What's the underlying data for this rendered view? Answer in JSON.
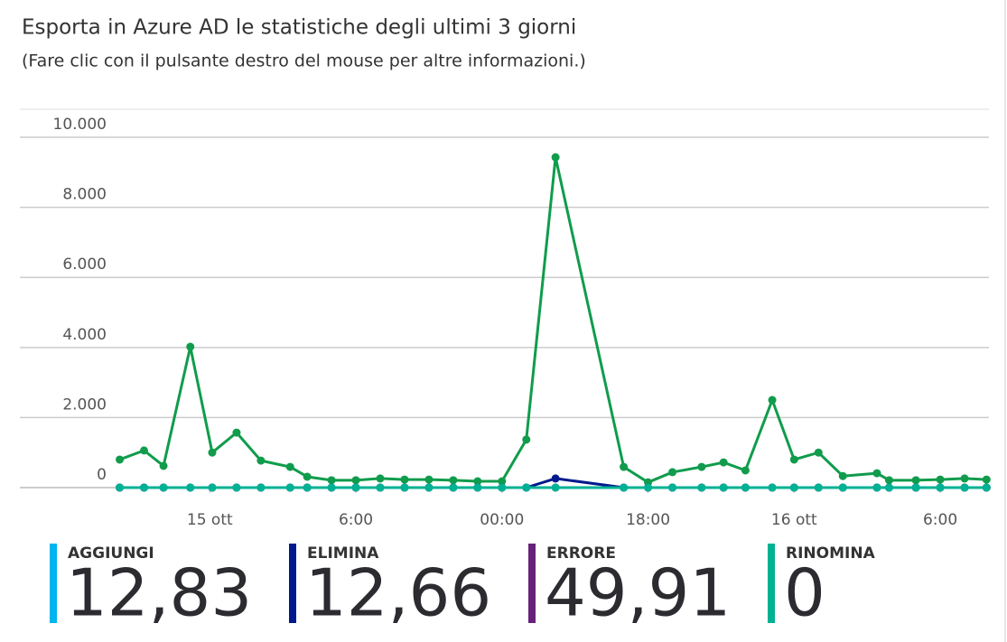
{
  "chart_data": {
    "type": "line",
    "title": "Esporta in Azure AD le statistiche degli ultimi 3 giorni",
    "subtitle": "(Fare clic con il pulsante destro del mouse per altre informazioni.)",
    "x": [
      -3.7,
      -2.7,
      -1.9,
      -0.8,
      0.1,
      1.1,
      2.1,
      3.3,
      4.0,
      5.0,
      6.0,
      7.0,
      8.0,
      9.0,
      10.0,
      11.0,
      12.0,
      13.0,
      14.2,
      17.0,
      18.0,
      19.0,
      20.2,
      21.1,
      22.0,
      23.1,
      24.0,
      25.0,
      26.0,
      27.4,
      27.9,
      29.0,
      30.0,
      31.0,
      31.9
    ],
    "series": [
      {
        "color": "#109c4c",
        "values": [
          800,
          1060,
          620,
          4020,
          1000,
          1570,
          770,
          590,
          310,
          210,
          210,
          260,
          230,
          230,
          210,
          180,
          180,
          1370,
          9430,
          590,
          150,
          440,
          590,
          720,
          490,
          2500,
          800,
          1000,
          330,
          410,
          210,
          210,
          230,
          260,
          230
        ]
      },
      {
        "color": "#68217a",
        "values": [
          0,
          0,
          0,
          0,
          0,
          0,
          0,
          0,
          0,
          0,
          0,
          0,
          0,
          0,
          0,
          0,
          0,
          0,
          0,
          0,
          0,
          0,
          0,
          0,
          0,
          0,
          0,
          0,
          0,
          0,
          0,
          0,
          0,
          0,
          0
        ]
      },
      {
        "color": "#001a8c",
        "values": [
          0,
          0,
          0,
          0,
          0,
          0,
          0,
          0,
          0,
          0,
          0,
          0,
          0,
          0,
          0,
          0,
          0,
          0,
          260,
          0,
          0,
          0,
          0,
          0,
          0,
          0,
          0,
          0,
          0,
          0,
          0,
          0,
          0,
          0,
          0
        ]
      },
      {
        "color": "#00b294",
        "values": [
          0,
          0,
          0,
          0,
          0,
          0,
          0,
          0,
          0,
          0,
          0,
          0,
          0,
          0,
          0,
          0,
          0,
          0,
          0,
          0,
          0,
          0,
          0,
          0,
          0,
          0,
          0,
          0,
          0,
          0,
          0,
          0,
          0,
          0,
          0
        ]
      }
    ],
    "xlim": [
      -7.8,
      32
    ],
    "xticks": [
      {
        "value": 0,
        "label": "15 ott"
      },
      {
        "value": 6,
        "label": "6:00"
      },
      {
        "value": 12,
        "label": "00:00"
      },
      {
        "value": 18,
        "label": "18:00"
      },
      {
        "value": 24,
        "label": "16 ott"
      },
      {
        "value": 30,
        "label": "6:00"
      }
    ],
    "ylim": [
      0,
      10800
    ],
    "yticks": [
      0,
      {
        "value": 2000,
        "label": "2.000"
      },
      {
        "value": 4000,
        "label": "4.000"
      },
      {
        "value": 6000,
        "label": "6.000"
      },
      {
        "value": 8000,
        "label": "8.000"
      },
      {
        "value": 10000,
        "label": "10.000"
      }
    ],
    "grid": true,
    "summary": [
      {
        "name": "AGGIUNGI",
        "color": "#00b4f0",
        "value": "12,83"
      },
      {
        "name": "ELIMINA",
        "color": "#001a8c",
        "value": "12,66"
      },
      {
        "name": "ERRORE",
        "color": "#68217a",
        "value": "49,91"
      },
      {
        "name": "RINOMINA",
        "color": "#00b294",
        "value": "0"
      }
    ]
  }
}
